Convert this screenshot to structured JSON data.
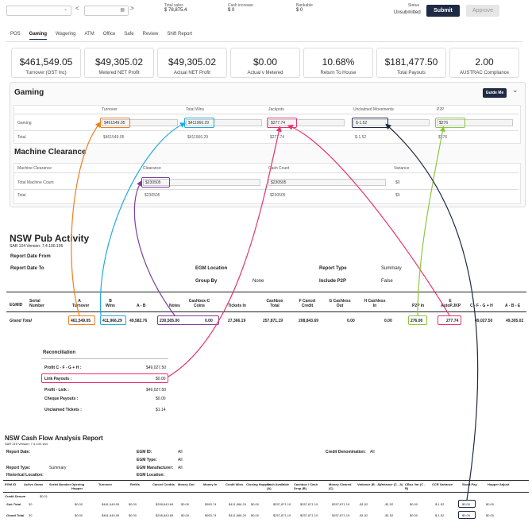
{
  "topbar": {
    "prev": "<",
    "next": ">",
    "stats": [
      {
        "label": "Total sales",
        "value": "$ 78,875.4"
      },
      {
        "label": "Cash increase",
        "value": "$ 0"
      },
      {
        "label": "Bankable",
        "value": "$ 0"
      }
    ],
    "status_label": "Status",
    "status_value": "Unsubmitted",
    "submit_label": "Submit",
    "approve_label": "Approve"
  },
  "tabs": [
    "POS",
    "Gaming",
    "Wagering",
    "ATM",
    "Office",
    "Safe",
    "Review",
    "Shift Report"
  ],
  "active_tab": "Gaming",
  "cards": [
    {
      "value": "$461,549.05",
      "label": "Turnover (GST Inc)"
    },
    {
      "value": "$49,305.02",
      "label": "Metered NET Profit"
    },
    {
      "value": "$49,305.02",
      "label": "Actual NET Profit"
    },
    {
      "value": "$0.00",
      "label": "Actual v Metered"
    },
    {
      "value": "10.68%",
      "label": "Return To House"
    },
    {
      "value": "$181,477.50",
      "label": "Total Payouts"
    },
    {
      "value": "2.00",
      "label": "AUSTRAC Compliance"
    }
  ],
  "gaming": {
    "title": "Gaming",
    "guide_label": "Guide Me",
    "headers": [
      "Turnover",
      "Total Wins",
      "Jackpots",
      "Unclaimed Movements",
      "P2P"
    ],
    "row_gaming": {
      "label": "Gaming",
      "values": [
        "$461549.05",
        "$411966.29",
        "$277.74",
        "$-1.52",
        "$276"
      ]
    },
    "row_total": {
      "label": "Total",
      "values": [
        "$461549.05",
        "$411966.29",
        "$277.74",
        "$-1.52",
        "$276"
      ]
    }
  },
  "machine": {
    "title": "Machine Clearance",
    "headers": [
      "Machine Clearance",
      "Clearance",
      "Cash Count",
      "Variance"
    ],
    "row1": {
      "label": "Total Machine Count",
      "values": [
        "$230505",
        "$230505",
        "$0"
      ]
    },
    "row2": {
      "label": "Total",
      "values": [
        "$230505",
        "$230505",
        "$0"
      ]
    }
  },
  "nsw": {
    "title": "NSW Pub Activity",
    "sub": "SAR 124   Version: 7.4.100.105",
    "date_from": "Report Date From",
    "date_to": "Report Date To",
    "egm_location": "EGM Location",
    "group_by": "Group By",
    "group_by_value": "None",
    "report_type": "Report Type",
    "report_type_value": "Summary",
    "include_p2p": "Include P2P",
    "include_p2p_value": "False",
    "cols": [
      "EGMID",
      "Serial Number",
      "A Turnover",
      "B Wins",
      "A - B",
      "Notes",
      "Cashbox-C Coins",
      "Tickets In",
      "Cashbox Total",
      "F Cancel Credit",
      "G Cashless Out",
      "H Cashless In",
      "P2P In",
      "E AutoP.JKP",
      "C - F - G + H",
      "A - B - E"
    ],
    "grand_total_label": "Grand Total",
    "grand_total": [
      "461,549.05",
      "411,966.29",
      "49,582.76",
      "230,505.00",
      "0.00",
      "27,366.19",
      "257,871.19",
      "208,843.69",
      "0.00",
      "0.00",
      "276.00",
      "277.74",
      "49,027.50",
      "49,305.02"
    ]
  },
  "reconciliation": {
    "title": "Reconciliation",
    "rows": [
      {
        "label": "Profit C - F - G + H :",
        "value": "$49,027.50"
      },
      {
        "label": "Link Payouts :",
        "value": "$0.00"
      },
      {
        "label": "Profit - Link :",
        "value": "$49,027.50"
      },
      {
        "label": "Cheque Payouts :",
        "value": "$0.00"
      },
      {
        "label": "Unclaimed Tickets :",
        "value": "$1.14"
      }
    ]
  },
  "cashflow": {
    "title": "NSW Cash Flow Analysis Report",
    "sub": "SAR 219   Version: 7.4.100.184",
    "report_date": "Report Date:",
    "report_type": "Report Type:",
    "report_type_value": "Summary",
    "hist_location": "Historical Location:",
    "egm_id": "EGM ID:",
    "egm_type": "EGM Type:",
    "egm_manufacturer": "EGM Manufacturer:",
    "egm_location": "EGM Location:",
    "all": "All",
    "credit_denom": "Credit Denomination:",
    "cols": [
      "EGM ID",
      "Active Game",
      "Serial Number",
      "Opening Hopper",
      "Turnover",
      "Refills",
      "Cancel Credits",
      "Money Out",
      "Money In",
      "Credit Wins",
      "Closing Hopper",
      "Cash Available (A)",
      "Cashbox / Cash Drop (B)",
      "Money Cleared (C)",
      "Variance (B - A)",
      "Variance (C - A)",
      "CBox Var (C - B)",
      "CCR Variance",
      "Short Pay",
      "Hopper Adjust"
    ],
    "credit_denom_row": {
      "label": "Credit Denom",
      "value": "$0.01"
    },
    "sub_total": {
      "label": "Sub Total",
      "count": "30",
      "values": [
        "$0.00",
        "$461,549.05",
        "$0.00",
        "$208,843.69",
        "$0.00",
        "$953.74",
        "$411,966.29",
        "$0.00",
        "$257,871.19",
        "$257,871.19",
        "$257,871.19",
        "-$1.52",
        "-$1.52",
        "$0.00",
        "$-1.52",
        "$0.00",
        "$0.00"
      ]
    },
    "grand_total": {
      "label": "Grand Total",
      "count": "30",
      "values": [
        "$0.00",
        "$461,549.05",
        "$0.00",
        "$208,843.69",
        "$0.00",
        "$953.74",
        "$411,966.29",
        "$0.00",
        "$257,871.19",
        "$257,871.19",
        "$257,871.19",
        "-$1.52",
        "-$1.52",
        "$0.00",
        "$-1.52",
        "$0.00",
        "$0.00"
      ]
    }
  },
  "colors": {
    "orange": "#f07f1e",
    "blue": "#21a9e1",
    "pink": "#e8336d",
    "navy": "#1f2a44",
    "green": "#8cc63e",
    "purple": "#7b3f9e"
  }
}
